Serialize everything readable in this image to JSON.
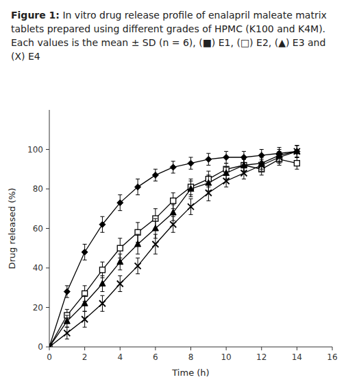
{
  "chart_data": {
    "type": "line",
    "title": "Figure 1:",
    "subtitle": "In vitro drug release profile of enalapril maleate matrix tablets prepared using different grades of HPMC (K100 and K4M). Each values is the mean ± SD (n = 6), (■) E1, (□) E2, (▲) E3 and (X) E4",
    "xlabel": "Time (h)",
    "ylabel": "Drug released (%)",
    "x": [
      0,
      1,
      2,
      3,
      4,
      5,
      6,
      7,
      8,
      9,
      10,
      11,
      12,
      13,
      14
    ],
    "xlim": [
      0,
      16
    ],
    "ylim": [
      0,
      120
    ],
    "xticks": [
      0,
      2,
      4,
      6,
      8,
      10,
      12,
      14,
      16
    ],
    "yticks": [
      0,
      20,
      40,
      60,
      80,
      100
    ],
    "grid": false,
    "series": [
      {
        "color": "#000000",
        "marker": "diamond",
        "values": [
          0,
          28,
          48,
          62,
          73,
          81,
          87,
          91,
          93,
          95,
          96,
          96,
          97,
          98,
          99
        ],
        "errors": [
          0,
          3,
          4,
          4,
          4,
          4,
          3,
          3,
          3,
          3,
          3,
          3,
          3,
          3,
          3
        ]
      },
      {
        "color": "#000000",
        "marker": "open-square",
        "values": [
          0,
          16,
          27,
          39,
          50,
          58,
          65,
          74,
          81,
          85,
          90,
          92,
          90,
          95,
          93
        ],
        "errors": [
          0,
          3,
          4,
          4,
          5,
          5,
          5,
          4,
          4,
          4,
          3,
          3,
          3,
          3,
          3
        ]
      },
      {
        "color": "#000000",
        "marker": "triangle",
        "values": [
          0,
          13,
          22,
          32,
          43,
          52,
          60,
          68,
          80,
          83,
          88,
          92,
          93,
          97,
          99
        ],
        "errors": [
          0,
          3,
          4,
          4,
          4,
          5,
          5,
          4,
          4,
          4,
          3,
          3,
          3,
          3,
          3
        ]
      },
      {
        "color": "#000000",
        "marker": "x",
        "values": [
          0,
          7,
          14,
          22,
          32,
          41,
          52,
          62,
          71,
          78,
          84,
          88,
          92,
          96,
          99
        ],
        "errors": [
          0,
          3,
          4,
          4,
          4,
          4,
          5,
          4,
          4,
          4,
          3,
          3,
          3,
          3,
          3
        ]
      }
    ]
  }
}
